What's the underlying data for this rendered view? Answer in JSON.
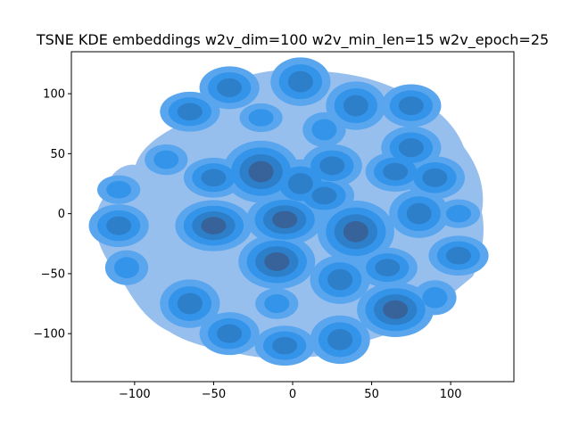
{
  "chart_data": {
    "type": "kde_contour",
    "title": "TSNE KDE embeddings w2v_dim=100 w2v_min_len=15 w2v_epoch=25",
    "xlabel": "",
    "ylabel": "",
    "xlim": [
      -140,
      140
    ],
    "ylim": [
      -140,
      135
    ],
    "x_ticks": [
      -100,
      -50,
      0,
      50,
      100
    ],
    "y_ticks": [
      -100,
      -50,
      0,
      50,
      100
    ],
    "x_tick_labels": [
      "−100",
      "−50",
      "0",
      "50",
      "100"
    ],
    "y_tick_labels": [
      "−100",
      "−50",
      "0",
      "50",
      "100"
    ],
    "grid": false,
    "legend": "none",
    "colors": {
      "level1": "#97bfee",
      "level2": "#5aa6ee",
      "level3": "#3394ea",
      "level4": "#2e7fc9",
      "level5": "#37639a",
      "level6": "#3a5a85",
      "axes": "#000000"
    },
    "density_peaks": [
      {
        "x": -5,
        "y": -5,
        "level": 5
      },
      {
        "x": -20,
        "y": 35,
        "level": 5
      },
      {
        "x": -10,
        "y": -40,
        "level": 5
      },
      {
        "x": -50,
        "y": -10,
        "level": 5
      },
      {
        "x": 40,
        "y": -15,
        "level": 5
      },
      {
        "x": 25,
        "y": 40,
        "level": 4
      },
      {
        "x": 20,
        "y": 15,
        "level": 4
      },
      {
        "x": 5,
        "y": 25,
        "level": 4
      },
      {
        "x": 65,
        "y": -80,
        "level": 5
      },
      {
        "x": 60,
        "y": -45,
        "level": 4
      },
      {
        "x": 30,
        "y": -55,
        "level": 4
      },
      {
        "x": -110,
        "y": -10,
        "level": 4
      },
      {
        "x": -50,
        "y": 30,
        "level": 4
      },
      {
        "x": 80,
        "y": 0,
        "level": 4
      },
      {
        "x": 90,
        "y": 30,
        "level": 4
      },
      {
        "x": 105,
        "y": -35,
        "level": 4
      },
      {
        "x": -65,
        "y": -75,
        "level": 4
      },
      {
        "x": -40,
        "y": -100,
        "level": 4
      },
      {
        "x": -5,
        "y": -110,
        "level": 4
      },
      {
        "x": 30,
        "y": -105,
        "level": 4
      },
      {
        "x": 75,
        "y": 55,
        "level": 4
      },
      {
        "x": 65,
        "y": 35,
        "level": 4
      },
      {
        "x": 5,
        "y": 110,
        "level": 4
      },
      {
        "x": -40,
        "y": 105,
        "level": 4
      },
      {
        "x": -65,
        "y": 85,
        "level": 4
      },
      {
        "x": 40,
        "y": 90,
        "level": 4
      },
      {
        "x": 75,
        "y": 90,
        "level": 4
      },
      {
        "x": -110,
        "y": 20,
        "level": 3
      },
      {
        "x": -105,
        "y": -45,
        "level": 3
      },
      {
        "x": -80,
        "y": 45,
        "level": 3
      },
      {
        "x": 105,
        "y": 0,
        "level": 3
      },
      {
        "x": 90,
        "y": -70,
        "level": 3
      },
      {
        "x": -10,
        "y": -75,
        "level": 3
      },
      {
        "x": -20,
        "y": 80,
        "level": 3
      },
      {
        "x": 20,
        "y": 70,
        "level": 3
      }
    ]
  }
}
